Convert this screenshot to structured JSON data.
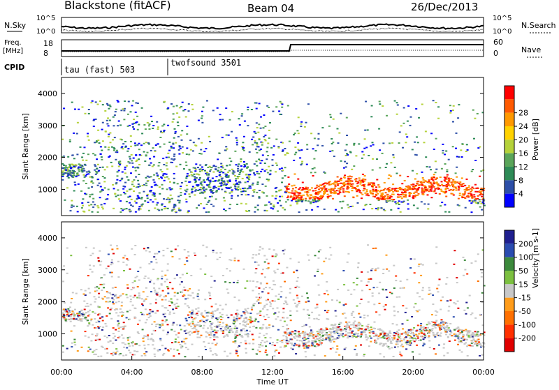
{
  "header": {
    "title": "Blackstone (fitACF)",
    "beam": "Beam 04",
    "date": "26/Dec/2013"
  },
  "top_panels": {
    "nsky_label": "N.Sky",
    "nsky_ticks": [
      "10^5",
      "10^0"
    ],
    "nsearch_label": "N.Search",
    "nsearch_ticks": [
      "10^5",
      "10^0"
    ],
    "freq_label_1": "Freq.",
    "freq_label_2": "[MHz]",
    "freq_ticks": [
      "18",
      "8"
    ],
    "nave_label": "Nave",
    "nave_ticks": [
      "60",
      "0"
    ],
    "cpid_label": "CPID",
    "cpid_segments": [
      {
        "name": "tau (fast) 503"
      },
      {
        "name": "twofsound 3501"
      }
    ]
  },
  "chart_data": [
    {
      "type": "heatmap",
      "title": "",
      "xlabel": "",
      "ylabel": "Slant Range [km]",
      "yticks": [
        "1000",
        "2000",
        "3000",
        "4000"
      ],
      "ylim": [
        180,
        4500
      ],
      "colorbar_label": "Power [dB]",
      "colorbar_ticks": [
        "4",
        "8",
        "12",
        "16",
        "20",
        "24",
        "28"
      ],
      "colorbar_colors": [
        "#0000ff",
        "#2d4fa8",
        "#2e8b57",
        "#5aa55a",
        "#b5d23a",
        "#ffd200",
        "#ff9900",
        "#ff5a00",
        "#ff0000"
      ]
    },
    {
      "type": "heatmap",
      "title": "",
      "xlabel": "Time UT",
      "ylabel": "Slant Range [km]",
      "yticks": [
        "1000",
        "2000",
        "3000",
        "4000"
      ],
      "xticks": [
        "00:00",
        "04:00",
        "08:00",
        "12:00",
        "16:00",
        "20:00",
        "00:00"
      ],
      "ylim": [
        180,
        4500
      ],
      "colorbar_label": "Velocity [m s-1]",
      "colorbar_ticks": [
        "200",
        "100",
        "50",
        "15",
        "-15",
        "-50",
        "-100",
        "-200"
      ],
      "colorbar_colors": [
        "#1f1f8f",
        "#2a4cb0",
        "#3c8a3c",
        "#7cc040",
        "#c8c8c8",
        "#ff9c1a",
        "#ff7000",
        "#ff3000",
        "#e00000"
      ]
    }
  ],
  "colors": {
    "axis": "#000000",
    "white": "#ffffff"
  }
}
